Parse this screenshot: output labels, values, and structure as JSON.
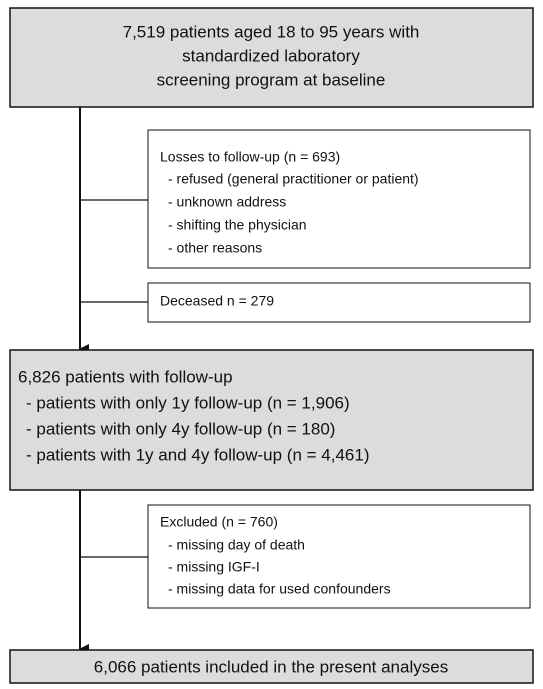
{
  "nodes": [
    {
      "lines": [
        "7,519 patients aged 18 to 95 years with",
        "standardized laboratory",
        "screening program at baseline"
      ]
    },
    {
      "lines": [
        "Losses to follow-up (n = 693)",
        "- refused (general practitioner or patient)",
        "- unknown address",
        "- shifting the physician",
        "- other reasons"
      ]
    },
    {
      "lines": [
        "Deceased n = 279"
      ]
    },
    {
      "lines": [
        "6,826 patients with follow-up",
        "- patients with only 1y follow-up (n = 1,906)",
        "- patients with only 4y follow-up (n = 180)",
        "- patients with 1y and 4y follow-up (n = 4,461)"
      ]
    },
    {
      "lines": [
        "Excluded (n = 760)",
        "- missing day of death",
        "- missing IGF-I",
        "- missing data for used confounders"
      ]
    },
    {
      "lines": [
        "6,066 patients included in the present analyses"
      ]
    }
  ]
}
